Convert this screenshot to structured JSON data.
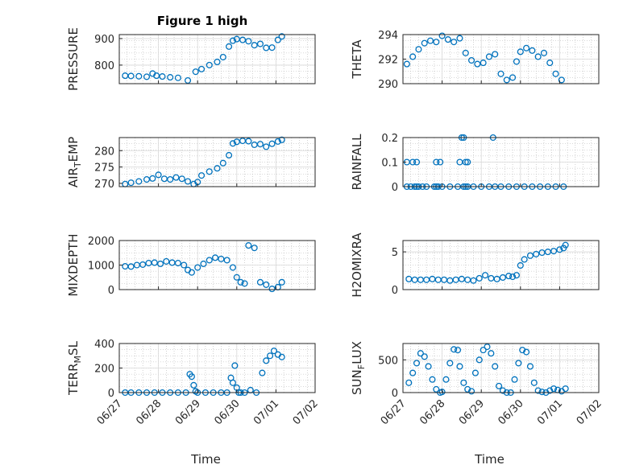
{
  "figure": {
    "title": "Figure 1 high",
    "background": "#ffffff",
    "marker_color": "#0072BD"
  },
  "chart_data": [
    {
      "id": "pressure",
      "type": "scatter",
      "title": "Figure 1 high",
      "ylabel": "PRESSURE",
      "xlabel": "",
      "ylim": [
        730,
        915
      ],
      "yticks": [
        800,
        900
      ],
      "xlim": [
        0,
        5
      ],
      "xticks": [
        0,
        1,
        2,
        3,
        4,
        5
      ],
      "xticklabels": [
        "06/27",
        "06/28",
        "06/29",
        "06/30",
        "07/01",
        "07/02"
      ],
      "show_xticklabels": false,
      "grid": true,
      "series": [
        {
          "x": [
            0.15,
            0.3,
            0.5,
            0.7,
            0.85,
            0.95,
            1.1,
            1.3,
            1.5,
            1.75,
            1.95,
            2.1,
            2.3,
            2.5,
            2.65,
            2.8,
            2.9,
            3.0,
            3.15,
            3.3,
            3.45,
            3.6,
            3.75,
            3.9,
            4.05,
            4.15
          ],
          "y": [
            760,
            759,
            758,
            756,
            768,
            760,
            757,
            754,
            752,
            742,
            775,
            785,
            800,
            812,
            830,
            870,
            892,
            898,
            895,
            890,
            875,
            880,
            865,
            866,
            895,
            908
          ]
        }
      ]
    },
    {
      "id": "theta",
      "type": "scatter",
      "ylabel": "THETA",
      "xlabel": "",
      "ylim": [
        290,
        294
      ],
      "yticks": [
        290,
        292,
        294
      ],
      "xlim": [
        0,
        5
      ],
      "xticks": [
        0,
        1,
        2,
        3,
        4,
        5
      ],
      "xticklabels": [
        "06/27",
        "06/28",
        "06/29",
        "06/30",
        "07/01",
        "07/02"
      ],
      "show_xticklabels": false,
      "grid": true,
      "series": [
        {
          "x": [
            0.1,
            0.25,
            0.4,
            0.55,
            0.7,
            0.85,
            1.0,
            1.15,
            1.3,
            1.45,
            1.6,
            1.75,
            1.9,
            2.05,
            2.2,
            2.35,
            2.5,
            2.65,
            2.8,
            2.9,
            3.0,
            3.15,
            3.3,
            3.45,
            3.6,
            3.75,
            3.9,
            4.05
          ],
          "y": [
            291.6,
            292.2,
            292.8,
            293.3,
            293.5,
            293.4,
            293.9,
            293.6,
            293.4,
            293.7,
            292.5,
            291.9,
            291.6,
            291.7,
            292.2,
            292.4,
            290.8,
            290.3,
            290.5,
            291.8,
            292.6,
            292.9,
            292.7,
            292.2,
            292.5,
            291.7,
            290.8,
            290.3
          ]
        }
      ]
    },
    {
      "id": "air_temp",
      "type": "scatter",
      "ylabel": "AIR_TEMP",
      "xlabel": "",
      "ylim": [
        269,
        284
      ],
      "yticks": [
        270,
        275,
        280
      ],
      "xlim": [
        0,
        5
      ],
      "xticks": [
        0,
        1,
        2,
        3,
        4,
        5
      ],
      "xticklabels": [
        "06/27",
        "06/28",
        "06/29",
        "06/30",
        "07/01",
        "07/02"
      ],
      "show_xticklabels": false,
      "grid": true,
      "series": [
        {
          "x": [
            0.15,
            0.3,
            0.5,
            0.7,
            0.85,
            1.0,
            1.15,
            1.3,
            1.45,
            1.6,
            1.75,
            1.9,
            2.0,
            2.1,
            2.3,
            2.5,
            2.65,
            2.8,
            2.9,
            3.0,
            3.15,
            3.3,
            3.45,
            3.6,
            3.75,
            3.9,
            4.05,
            4.15
          ],
          "y": [
            269.8,
            270.2,
            270.6,
            271.2,
            271.5,
            272.6,
            271.4,
            271.2,
            271.8,
            271.4,
            270.6,
            269.8,
            270.4,
            272.4,
            273.6,
            274.6,
            276.2,
            278.6,
            282.2,
            282.7,
            283.0,
            282.9,
            281.8,
            282.0,
            281.2,
            282.1,
            282.8,
            283.3
          ]
        }
      ]
    },
    {
      "id": "rainfall",
      "type": "scatter",
      "ylabel": "RAINFALL",
      "xlabel": "",
      "ylim": [
        0,
        0.2
      ],
      "yticks": [
        0,
        0.1,
        0.2
      ],
      "xlim": [
        0,
        5
      ],
      "xticks": [
        0,
        1,
        2,
        3,
        4,
        5
      ],
      "xticklabels": [
        "06/27",
        "06/28",
        "06/29",
        "06/30",
        "07/01",
        "07/02"
      ],
      "show_xticklabels": false,
      "grid": true,
      "series": [
        {
          "x": [
            0.1,
            0.2,
            0.3,
            0.35,
            0.4,
            0.5,
            0.6,
            0.8,
            0.85,
            0.9,
            1.0,
            1.2,
            1.4,
            1.55,
            1.6,
            1.65,
            1.8,
            2.0,
            2.2,
            2.35,
            2.5,
            2.7,
            2.9,
            3.1,
            3.3,
            3.5,
            3.7,
            3.9,
            4.1,
            0.1,
            0.25,
            0.35,
            0.85,
            0.95,
            1.45,
            1.6,
            1.65,
            1.5,
            1.55,
            2.3
          ],
          "y": [
            0,
            0,
            0,
            0,
            0,
            0,
            0,
            0,
            0,
            0,
            0,
            0,
            0,
            0,
            0,
            0,
            0,
            0,
            0,
            0,
            0,
            0,
            0,
            0,
            0,
            0,
            0,
            0,
            0,
            0.1,
            0.1,
            0.1,
            0.1,
            0.1,
            0.1,
            0.1,
            0.1,
            0.2,
            0.2,
            0.2
          ]
        }
      ]
    },
    {
      "id": "mixdepth",
      "type": "scatter",
      "ylabel": "MIXDEPTH",
      "xlabel": "",
      "ylim": [
        0,
        2000
      ],
      "yticks": [
        0,
        1000,
        2000
      ],
      "xlim": [
        0,
        5
      ],
      "xticks": [
        0,
        1,
        2,
        3,
        4,
        5
      ],
      "xticklabels": [
        "06/27",
        "06/28",
        "06/29",
        "06/30",
        "07/01",
        "07/02"
      ],
      "show_xticklabels": false,
      "grid": true,
      "series": [
        {
          "x": [
            0.15,
            0.3,
            0.45,
            0.6,
            0.75,
            0.9,
            1.05,
            1.2,
            1.35,
            1.5,
            1.65,
            1.75,
            1.85,
            2.0,
            2.15,
            2.3,
            2.45,
            2.6,
            2.75,
            2.9,
            3.0,
            3.1,
            3.2,
            3.3,
            3.45,
            3.6,
            3.75,
            3.9,
            4.05,
            4.15
          ],
          "y": [
            950,
            940,
            1000,
            1020,
            1080,
            1100,
            1050,
            1150,
            1100,
            1080,
            1000,
            800,
            700,
            900,
            1050,
            1200,
            1300,
            1250,
            1200,
            900,
            500,
            300,
            250,
            1800,
            1700,
            300,
            200,
            30,
            100,
            300
          ]
        }
      ]
    },
    {
      "id": "h2omixra",
      "type": "scatter",
      "ylabel": "H2OMIXRA",
      "xlabel": "",
      "ylim": [
        0,
        6.5
      ],
      "yticks": [
        0,
        5
      ],
      "xlim": [
        0,
        5
      ],
      "xticks": [
        0,
        1,
        2,
        3,
        4,
        5
      ],
      "xticklabels": [
        "06/27",
        "06/28",
        "06/29",
        "06/30",
        "07/01",
        "07/02"
      ],
      "show_xticklabels": false,
      "grid": true,
      "series": [
        {
          "x": [
            0.15,
            0.3,
            0.45,
            0.6,
            0.75,
            0.9,
            1.05,
            1.2,
            1.35,
            1.5,
            1.65,
            1.8,
            1.95,
            2.1,
            2.25,
            2.4,
            2.55,
            2.7,
            2.8,
            2.9,
            3.0,
            3.1,
            3.25,
            3.4,
            3.55,
            3.7,
            3.85,
            4.0,
            4.1,
            4.15
          ],
          "y": [
            1.4,
            1.3,
            1.3,
            1.3,
            1.4,
            1.3,
            1.3,
            1.2,
            1.3,
            1.4,
            1.3,
            1.2,
            1.5,
            1.9,
            1.5,
            1.4,
            1.6,
            1.8,
            1.7,
            1.9,
            3.2,
            4.0,
            4.5,
            4.7,
            4.9,
            5.0,
            5.1,
            5.3,
            5.5,
            5.9
          ]
        }
      ]
    },
    {
      "id": "terr_msl",
      "type": "scatter",
      "ylabel": "TERR_MSL",
      "xlabel": "Time",
      "ylim": [
        0,
        400
      ],
      "yticks": [
        0,
        200,
        400
      ],
      "xlim": [
        0,
        5
      ],
      "xticks": [
        0,
        1,
        2,
        3,
        4,
        5
      ],
      "xticklabels": [
        "06/27",
        "06/28",
        "06/29",
        "06/30",
        "07/01",
        "07/02"
      ],
      "show_xticklabels": true,
      "grid": true,
      "series": [
        {
          "x": [
            0.15,
            0.3,
            0.5,
            0.7,
            0.9,
            1.1,
            1.3,
            1.5,
            1.7,
            1.8,
            1.85,
            1.9,
            1.95,
            2.0,
            2.2,
            2.4,
            2.6,
            2.75,
            2.85,
            2.9,
            2.95,
            3.0,
            3.05,
            3.1,
            3.2,
            3.35,
            3.5,
            3.65,
            3.75,
            3.85,
            3.95,
            4.05,
            4.15
          ],
          "y": [
            0,
            0,
            0,
            0,
            0,
            0,
            0,
            0,
            0,
            150,
            130,
            60,
            10,
            0,
            0,
            0,
            0,
            0,
            120,
            80,
            220,
            40,
            0,
            0,
            0,
            20,
            0,
            160,
            260,
            300,
            340,
            310,
            290
          ]
        }
      ]
    },
    {
      "id": "sun_flux",
      "type": "scatter",
      "ylabel": "SUN_FLUX",
      "xlabel": "Time",
      "ylim": [
        0,
        750
      ],
      "yticks": [
        0,
        500
      ],
      "xlim": [
        0,
        5
      ],
      "xticks": [
        0,
        1,
        2,
        3,
        4,
        5
      ],
      "xticklabels": [
        "06/27",
        "06/28",
        "06/29",
        "06/30",
        "07/01",
        "07/02"
      ],
      "show_xticklabels": true,
      "grid": true,
      "series": [
        {
          "x": [
            0.15,
            0.25,
            0.35,
            0.45,
            0.55,
            0.65,
            0.75,
            0.85,
            0.95,
            1.0,
            1.1,
            1.2,
            1.3,
            1.4,
            1.45,
            1.55,
            1.65,
            1.75,
            1.85,
            1.95,
            2.05,
            2.15,
            2.25,
            2.35,
            2.45,
            2.55,
            2.65,
            2.75,
            2.85,
            2.95,
            3.05,
            3.15,
            3.25,
            3.35,
            3.45,
            3.55,
            3.65,
            3.75,
            3.85,
            3.95,
            4.05,
            4.15
          ],
          "y": [
            150,
            300,
            450,
            600,
            550,
            400,
            200,
            50,
            0,
            10,
            200,
            450,
            660,
            650,
            400,
            150,
            50,
            20,
            300,
            500,
            650,
            700,
            600,
            400,
            100,
            30,
            0,
            0,
            200,
            450,
            650,
            620,
            400,
            150,
            30,
            10,
            0,
            30,
            60,
            40,
            20,
            60
          ]
        }
      ]
    }
  ]
}
